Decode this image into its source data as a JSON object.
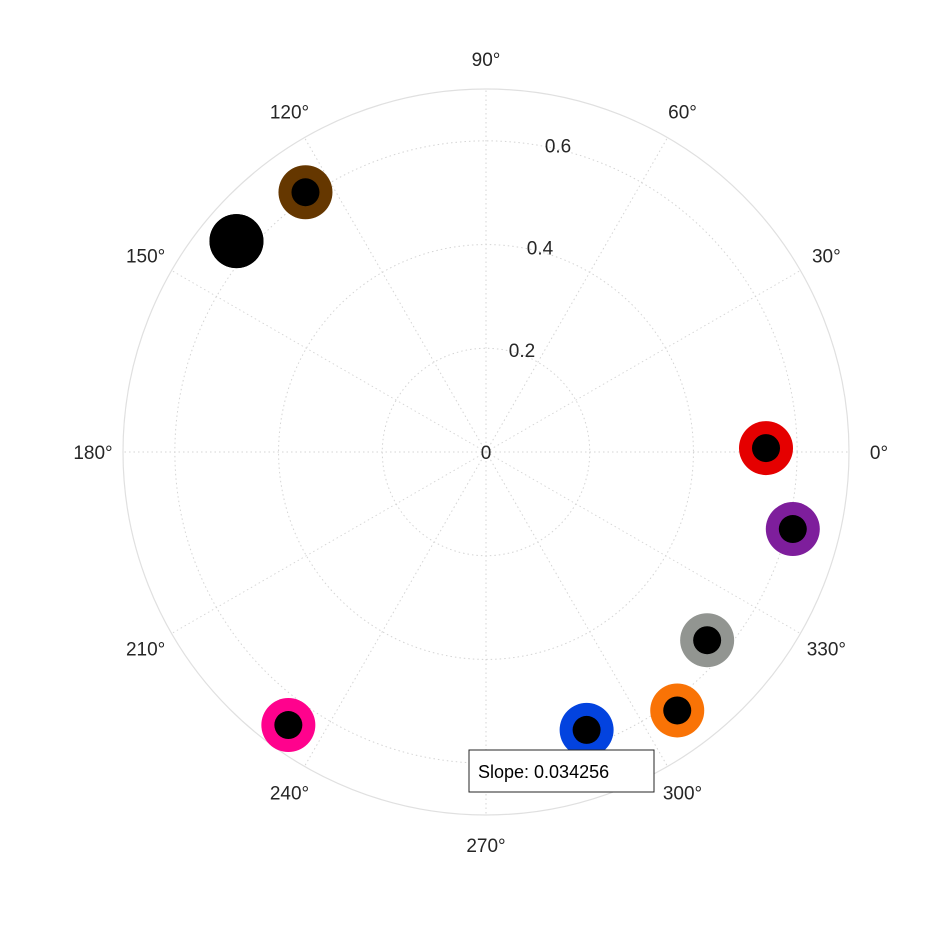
{
  "chart_data": {
    "type": "scatter",
    "coordinate_system": "polar",
    "title": "",
    "rlim": [
      0,
      0.7
    ],
    "radial_ticks": [
      0,
      0.2,
      0.4,
      0.6
    ],
    "radial_tick_labels": [
      "0",
      "0.2",
      "0.4",
      "0.6"
    ],
    "angular_ticks": [
      0,
      30,
      60,
      90,
      120,
      150,
      180,
      210,
      240,
      270,
      300,
      330
    ],
    "angular_tick_labels": [
      "0°",
      "30°",
      "60°",
      "90°",
      "120°",
      "150°",
      "180°",
      "210°",
      "240°",
      "270°",
      "300°",
      "330°"
    ],
    "grid": true,
    "points": [
      {
        "theta": 0.8,
        "r": 0.54,
        "color": "#e50000",
        "inner_color": "#000000"
      },
      {
        "theta": 345.9,
        "r": 0.61,
        "color": "#7e1e9c",
        "inner_color": "#000000"
      },
      {
        "theta": 319.6,
        "r": 0.56,
        "color": "#929591",
        "inner_color": "#000000"
      },
      {
        "theta": 306.5,
        "r": 0.62,
        "color": "#f97306",
        "inner_color": "#000000"
      },
      {
        "theta": 289.9,
        "r": 0.57,
        "color": "#0343df",
        "inner_color": "#000000"
      },
      {
        "theta": 234.1,
        "r": 0.65,
        "color": "#ff028d",
        "inner_color": "#000000"
      },
      {
        "theta": 139.8,
        "r": 0.63,
        "color": "#000000",
        "inner_color": "#000000"
      },
      {
        "theta": 124.8,
        "r": 0.61,
        "color": "#653700",
        "inner_color": "#000000"
      }
    ],
    "annotation": "Slope: 0.034256"
  }
}
